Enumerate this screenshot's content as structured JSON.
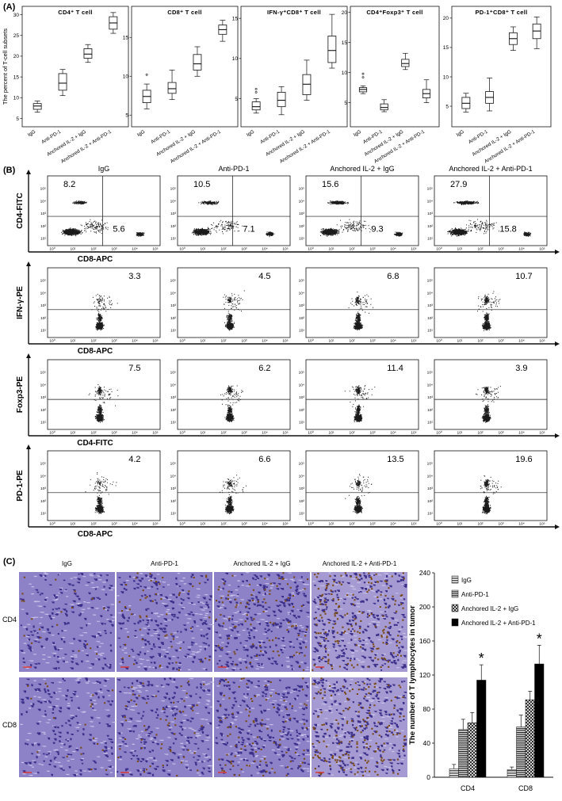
{
  "panel_labels": [
    "(A)",
    "(B)",
    "(C)"
  ],
  "colors": {
    "ink": "#111111",
    "dots": "#1a1a1a",
    "ihc_bg": "#8d82c8",
    "ihc_cell": "#3b2f8a",
    "ihc_brown": "#7a4a16",
    "scalebar": "#d9322b"
  },
  "chart_data": [
    {
      "id": "A1",
      "type": "box",
      "title": "CD4⁺ T cell",
      "ylabel": "The percent of T-cell subsets",
      "categories": [
        "IgG",
        "Anti-PD-1",
        "Anchored IL-2 + IgG",
        "Anchored IL-2 + Anti-PD-1"
      ],
      "ylim": [
        3,
        32
      ],
      "yticks": [
        5,
        10,
        15,
        20,
        25,
        30
      ],
      "boxes": [
        {
          "min": 6.5,
          "q1": 7.2,
          "median": 8.0,
          "q3": 8.6,
          "max": 9.2,
          "outliers": []
        },
        {
          "min": 10.5,
          "q1": 11.8,
          "median": 13.5,
          "q3": 15.8,
          "max": 16.8,
          "outliers": []
        },
        {
          "min": 18.5,
          "q1": 19.5,
          "median": 20.5,
          "q3": 21.8,
          "max": 22.8,
          "outliers": []
        },
        {
          "min": 25.5,
          "q1": 26.5,
          "median": 28.0,
          "q3": 29.5,
          "max": 30.5,
          "outliers": []
        }
      ]
    },
    {
      "id": "A2",
      "type": "box",
      "title": "CD8⁺ T cell",
      "categories": [
        "IgG",
        "Anti-PD-1",
        "Anchored IL-2 + IgG",
        "Anchored IL-2 + Anti-PD-1"
      ],
      "ylim": [
        3.5,
        19
      ],
      "yticks": [
        5,
        10,
        15
      ],
      "boxes": [
        {
          "min": 5.8,
          "q1": 6.6,
          "median": 7.4,
          "q3": 8.2,
          "max": 9.0,
          "outliers": [
            10.2
          ]
        },
        {
          "min": 7.0,
          "q1": 7.8,
          "median": 8.4,
          "q3": 9.2,
          "max": 10.8,
          "outliers": []
        },
        {
          "min": 10.0,
          "q1": 10.8,
          "median": 11.6,
          "q3": 12.8,
          "max": 13.8,
          "outliers": []
        },
        {
          "min": 14.5,
          "q1": 15.4,
          "median": 16.0,
          "q3": 16.6,
          "max": 17.2,
          "outliers": []
        }
      ]
    },
    {
      "id": "A3",
      "type": "box",
      "title": "IFN-γ⁺CD8⁺ T cell",
      "categories": [
        "IgG",
        "Anti-PD-1",
        "Anchored IL-2 + IgG",
        "Anchored IL-2 + Anti-PD-1"
      ],
      "ylim": [
        1.5,
        16.5
      ],
      "yticks": [
        5,
        10,
        15
      ],
      "boxes": [
        {
          "min": 3.2,
          "q1": 3.6,
          "median": 4.0,
          "q3": 4.6,
          "max": 5.0,
          "outliers": [
            5.8,
            6.2
          ]
        },
        {
          "min": 3.0,
          "q1": 4.0,
          "median": 4.8,
          "q3": 5.8,
          "max": 6.5,
          "outliers": []
        },
        {
          "min": 4.8,
          "q1": 5.5,
          "median": 6.8,
          "q3": 8.0,
          "max": 9.8,
          "outliers": []
        },
        {
          "min": 8.8,
          "q1": 9.5,
          "median": 11.0,
          "q3": 12.8,
          "max": 15.5,
          "outliers": []
        }
      ]
    },
    {
      "id": "A4",
      "type": "box",
      "title": "CD4⁺Foxp3⁺ T cell",
      "categories": [
        "IgG",
        "Anti-PD-1",
        "Anchored IL-2 + IgG",
        "Anchored IL-2 + Anti-PD-1"
      ],
      "ylim": [
        1,
        21
      ],
      "yticks": [
        5,
        10,
        15,
        20
      ],
      "boxes": [
        {
          "min": 6.5,
          "q1": 6.8,
          "median": 7.2,
          "q3": 7.5,
          "max": 7.8,
          "outliers": [
            9.2,
            9.8
          ]
        },
        {
          "min": 3.5,
          "q1": 3.8,
          "median": 4.2,
          "q3": 4.8,
          "max": 5.5,
          "outliers": []
        },
        {
          "min": 10.5,
          "q1": 11.0,
          "median": 11.5,
          "q3": 12.2,
          "max": 13.2,
          "outliers": []
        },
        {
          "min": 5.0,
          "q1": 5.8,
          "median": 6.5,
          "q3": 7.2,
          "max": 8.8,
          "outliers": []
        }
      ]
    },
    {
      "id": "A5",
      "type": "box",
      "title": "PD-1⁺CD8⁺ T cell",
      "categories": [
        "IgG",
        "Anti-PD-1",
        "Anchored IL-2 + IgG",
        "Anchored IL-2 + Anti-PD-1"
      ],
      "ylim": [
        1.5,
        22
      ],
      "yticks": [
        5,
        10,
        15,
        20
      ],
      "boxes": [
        {
          "min": 4.0,
          "q1": 4.6,
          "median": 5.5,
          "q3": 6.5,
          "max": 7.2,
          "outliers": []
        },
        {
          "min": 4.2,
          "q1": 5.5,
          "median": 6.5,
          "q3": 7.5,
          "max": 9.8,
          "outliers": []
        },
        {
          "min": 14.5,
          "q1": 15.5,
          "median": 16.5,
          "q3": 17.5,
          "max": 18.5,
          "outliers": []
        },
        {
          "min": 14.8,
          "q1": 16.5,
          "median": 17.8,
          "q3": 19.0,
          "max": 20.2,
          "outliers": []
        }
      ]
    },
    {
      "id": "B",
      "type": "scatter",
      "columns": [
        "IgG",
        "Anti-PD-1",
        "Anchored IL-2 + IgG",
        "Anchored IL-2 + Anti-PD-1"
      ],
      "tick_labels": [
        "10⁰",
        "10¹",
        "10²",
        "10³",
        "10⁴",
        "10⁵"
      ],
      "rows": [
        {
          "ylabel": "CD4-FITC",
          "xlabel": "CD8-APC",
          "layout": "quad",
          "values": [
            [
              "8.2",
              "5.6"
            ],
            [
              "10.5",
              "7.1"
            ],
            [
              "15.6",
              "9.3"
            ],
            [
              "27.9",
              "15.8"
            ]
          ]
        },
        {
          "ylabel": "IFN-γ-PE",
          "xlabel": "CD8-APC",
          "layout": "single",
          "values": [
            [
              "3.3"
            ],
            [
              "4.5"
            ],
            [
              "6.8"
            ],
            [
              "10.7"
            ]
          ]
        },
        {
          "ylabel": "Foxp3-PE",
          "xlabel": "CD4-FITC",
          "layout": "single",
          "values": [
            [
              "7.5"
            ],
            [
              "6.2"
            ],
            [
              "11.4"
            ],
            [
              "3.9"
            ]
          ]
        },
        {
          "ylabel": "PD-1-PE",
          "xlabel": "CD8-APC",
          "layout": "single",
          "values": [
            [
              "4.2"
            ],
            [
              "6.6"
            ],
            [
              "13.5"
            ],
            [
              "19.6"
            ]
          ]
        }
      ]
    },
    {
      "id": "C-images",
      "type": "image-grid",
      "columns": [
        "IgG",
        "Anti-PD-1",
        "Anchored IL-2 + IgG",
        "Anchored IL-2 + Anti-PD-1"
      ],
      "rows": [
        "CD4",
        "CD8"
      ]
    },
    {
      "id": "C-bar",
      "type": "bar",
      "ylabel": "The number of T lymphocytes in tumor",
      "categories": [
        "CD4",
        "CD8"
      ],
      "ylim": [
        0,
        240
      ],
      "yticks": [
        0,
        40,
        80,
        120,
        160,
        200,
        240
      ],
      "series": [
        {
          "name": "IgG",
          "values": [
            10,
            9
          ],
          "errors": [
            5,
            3
          ]
        },
        {
          "name": "Anti-PD-1",
          "values": [
            56,
            59
          ],
          "errors": [
            12,
            14
          ]
        },
        {
          "name": "Anchored IL-2 + IgG",
          "values": [
            64,
            91
          ],
          "errors": [
            12,
            10
          ]
        },
        {
          "name": "Anchored IL-2 + Anti-PD-1",
          "values": [
            114,
            133
          ],
          "errors": [
            18,
            22
          ]
        }
      ],
      "annotations": [
        "*",
        "*"
      ]
    }
  ]
}
